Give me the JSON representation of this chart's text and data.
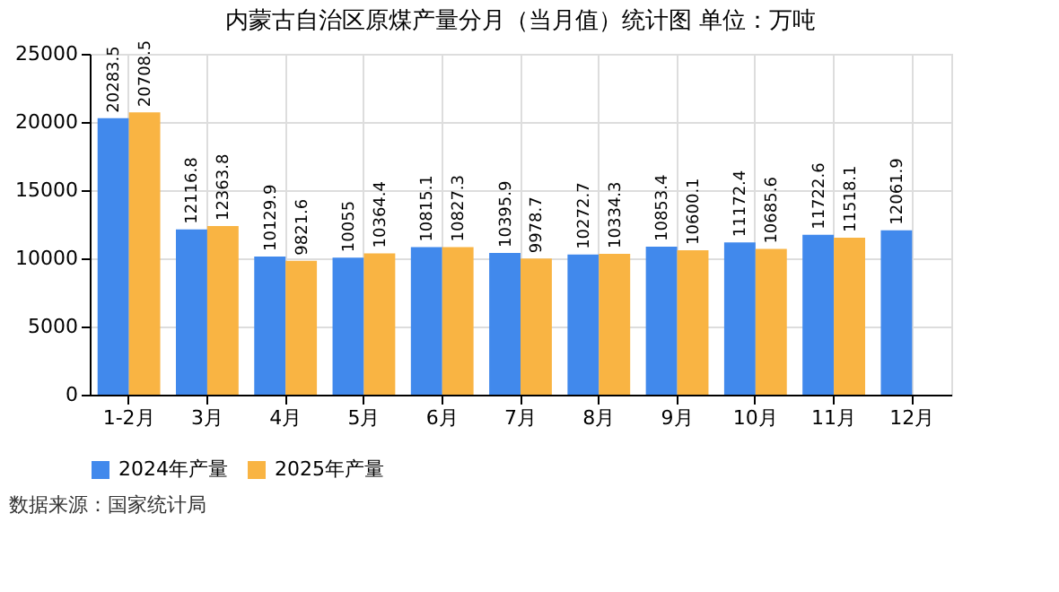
{
  "chart_data": {
    "type": "bar",
    "title": "内蒙古自治区原煤产量分月（当月值）统计图 单位：万吨",
    "categories": [
      "1-2月",
      "3月",
      "4月",
      "5月",
      "6月",
      "7月",
      "8月",
      "9月",
      "10月",
      "11月",
      "12月"
    ],
    "series": [
      {
        "name": "2024年产量",
        "color": "#4189ec",
        "values": [
          20283.5,
          12116.8,
          10129.9,
          10055,
          10815.1,
          10395.9,
          10272.7,
          10853.4,
          11172.4,
          11722.6,
          12061.9
        ]
      },
      {
        "name": "2025年产量",
        "color": "#f9b443",
        "values": [
          20708.5,
          12363.8,
          9821.6,
          10364.4,
          10827.3,
          9978.7,
          10334.3,
          10600.1,
          10685.6,
          11518.1,
          null
        ]
      }
    ],
    "ylim": [
      0,
      25000
    ],
    "yticks": [
      0,
      5000,
      10000,
      15000,
      20000,
      25000
    ],
    "grid": true,
    "legend": "bottom",
    "data_labels": true,
    "annotations": [
      "数据来源：国家统计局"
    ]
  }
}
